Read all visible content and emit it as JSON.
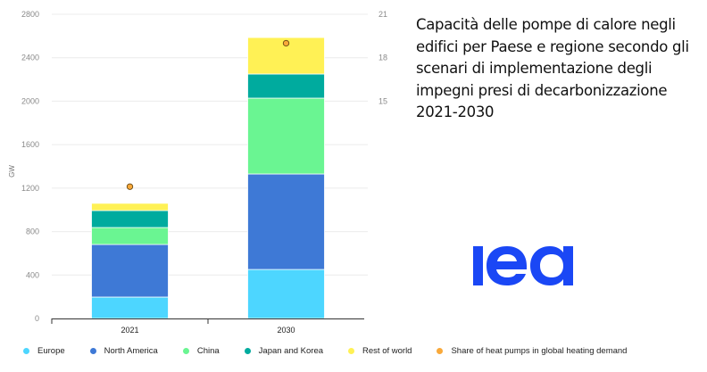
{
  "title": "Capacità delle pompe di calore negli edifici per Paese e regione secondo gli scenari di implementazione degli impegni presi di decarbonizzazione 2021-2030",
  "logo": {
    "text": "iea",
    "color": "#1a47f5"
  },
  "chart_data": {
    "type": "bar",
    "stacked": true,
    "title": "Capacità delle pompe di calore negli edifici per Paese e regione secondo gli scenari di implementazione degli impegni presi di decarbonizzazione 2021-2030",
    "categories": [
      "2021",
      "2030"
    ],
    "xlabel": "",
    "ylabel": "GW",
    "ylim": [
      0,
      2800
    ],
    "yticks": [
      0,
      400,
      800,
      1200,
      1600,
      2000,
      2400,
      2800
    ],
    "y2lim": [
      0,
      21
    ],
    "y2ticks_visible": [
      15,
      18,
      21
    ],
    "grid": true,
    "legend_position": "bottom",
    "series": [
      {
        "name": "Europe",
        "color": "#4dd6ff",
        "values": [
          197,
          451
        ]
      },
      {
        "name": "North America",
        "color": "#3e79d6",
        "values": [
          484,
          879
        ]
      },
      {
        "name": "China",
        "color": "#6af592",
        "values": [
          156,
          698
        ]
      },
      {
        "name": "Japan and Korea",
        "color": "#00ab9e",
        "values": [
          156,
          222
        ]
      },
      {
        "name": "Rest of world",
        "color": "#fff155",
        "values": [
          67,
          336
        ]
      }
    ],
    "secondary_series": {
      "name": "Share of heat pumps in global heating demand",
      "type": "scatter",
      "axis": "right",
      "color": "#f9a93a",
      "values": [
        9.1,
        19.0
      ]
    }
  }
}
